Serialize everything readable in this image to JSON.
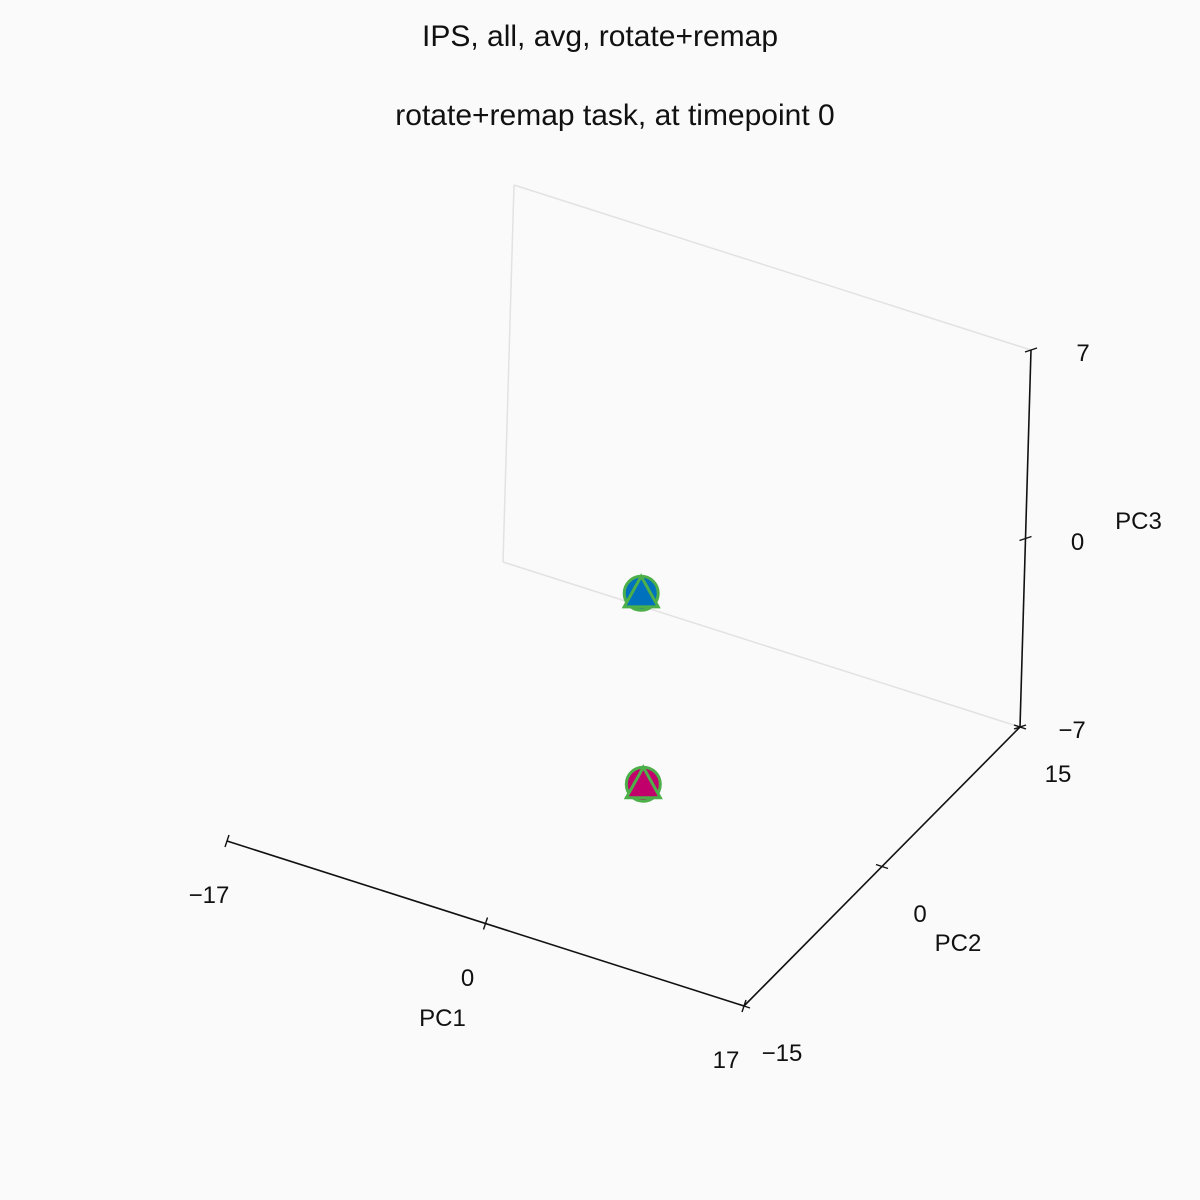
{
  "figure": {
    "suptitle": "IPS, all, avg, rotate+remap",
    "subtitle": "rotate+remap task, at timepoint 0"
  },
  "chart_data": {
    "type": "scatter",
    "projection": "3d",
    "axes": {
      "x": {
        "label": "PC1",
        "lim": [
          -17,
          17
        ],
        "ticks": [
          -17,
          0,
          17
        ],
        "tick_labels": [
          "−17",
          "0",
          "17"
        ]
      },
      "y": {
        "label": "PC2",
        "lim": [
          -15,
          15
        ],
        "ticks": [
          -15,
          0,
          15
        ],
        "tick_labels": [
          "−15",
          "0",
          "15"
        ]
      },
      "z": {
        "label": "PC3",
        "lim": [
          -7,
          7
        ],
        "ticks": [
          -7,
          0,
          7
        ],
        "tick_labels": [
          "−7",
          "0",
          "7"
        ]
      }
    },
    "grid": false,
    "points": [
      {
        "marker": "circle",
        "x": 0.5,
        "y": 0.5,
        "z": 0.0,
        "fill": "#0072BD",
        "edge": "#4DAF4A"
      },
      {
        "marker": "triangle",
        "x": 0.5,
        "y": 0.5,
        "z": 0.0,
        "fill": "#0072BD",
        "edge": "#4DAF4A"
      },
      {
        "marker": "circle",
        "x": 1.0,
        "y": 0.5,
        "z": -7.0,
        "fill": "#C2006B",
        "edge": "#4DAF4A"
      },
      {
        "marker": "triangle",
        "x": 1.0,
        "y": 0.5,
        "z": -7.0,
        "fill": "#C2006B",
        "edge": "#4DAF4A"
      }
    ]
  }
}
